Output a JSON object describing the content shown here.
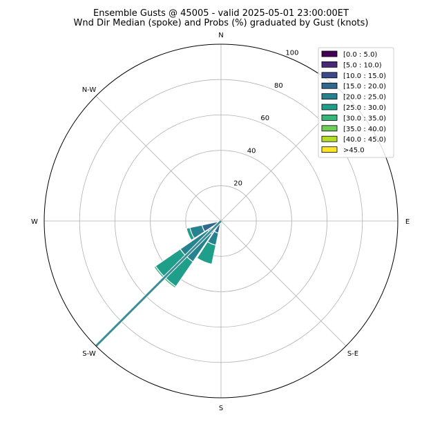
{
  "chart_data": {
    "type": "windrose",
    "title": "Ensemble Gusts @ 45005 - valid 2025-05-01 23:00:00ET",
    "subtitle": "Wnd Dir Median (spoke) and Probs (%) graduated by Gust (knots)",
    "direction_labels": [
      "N",
      "N-W",
      "W",
      "S-W",
      "S",
      "S-E",
      "E"
    ],
    "radial_ticks": [
      20,
      40,
      60,
      80,
      100
    ],
    "rmax": 100,
    "grid": true,
    "legend_position": "top-right",
    "legend": [
      {
        "label": "[0.0 : 5.0)",
        "color": "#440154"
      },
      {
        "label": "[5.0 : 10.0)",
        "color": "#482878"
      },
      {
        "label": "[10.0 : 15.0)",
        "color": "#3e4989"
      },
      {
        "label": "[15.0 : 20.0)",
        "color": "#31688e"
      },
      {
        "label": "[20.0 : 25.0)",
        "color": "#26828e"
      },
      {
        "label": "[25.0 : 30.0)",
        "color": "#1f9e89"
      },
      {
        "label": "[30.0 : 35.0)",
        "color": "#35b779"
      },
      {
        "label": "[35.0 : 40.0)",
        "color": "#6ece58"
      },
      {
        "label": "[40.0 : 45.0)",
        "color": "#b5de2b"
      },
      {
        "label": ">45.0",
        "color": "#fde725"
      }
    ],
    "spoke": {
      "direction_deg": 225,
      "value": 100
    },
    "sectors": [
      {
        "direction_deg": 202.5,
        "cumulative": [
          0,
          0,
          0,
          7,
          14,
          25,
          25,
          25,
          25,
          25
        ]
      },
      {
        "direction_deg": 225,
        "cumulative": [
          0,
          0,
          0,
          9,
          28,
          45,
          46,
          46,
          46,
          46
        ]
      },
      {
        "direction_deg": 247.5,
        "cumulative": [
          0,
          0,
          0,
          11,
          18,
          20,
          20,
          20,
          20,
          20
        ]
      }
    ]
  }
}
